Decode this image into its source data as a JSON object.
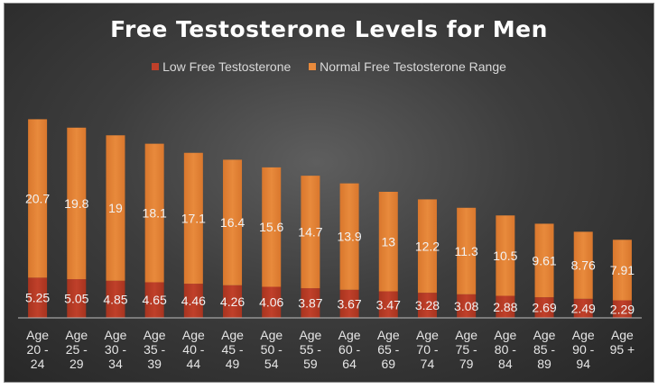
{
  "colors": {
    "low": "#c0402a",
    "normal": "#e88a3c",
    "text": "#ffffff",
    "axis": "#bfbfbf"
  },
  "chart_data": {
    "type": "bar",
    "stacked": true,
    "title": "Free Testosterone Levels for Men",
    "legend_position": "top",
    "grid": false,
    "categories": [
      [
        "Age",
        "20 -",
        "24"
      ],
      [
        "Age",
        "25 -",
        "29"
      ],
      [
        "Age",
        "30 -",
        "34"
      ],
      [
        "Age",
        "35 -",
        "39"
      ],
      [
        "Age",
        "40 -",
        "44"
      ],
      [
        "Age",
        "45 -",
        "49"
      ],
      [
        "Age",
        "50 -",
        "54"
      ],
      [
        "Age",
        "55 -",
        "59"
      ],
      [
        "Age",
        "60 -",
        "64"
      ],
      [
        "Age",
        "65 -",
        "69"
      ],
      [
        "Age",
        "70 -",
        "74"
      ],
      [
        "Age",
        "75 -",
        "79"
      ],
      [
        "Age",
        "80 -",
        "84"
      ],
      [
        "Age",
        "85 -",
        "89"
      ],
      [
        "Age",
        "90 -",
        "94"
      ],
      [
        "Age",
        "95 +"
      ]
    ],
    "series": [
      {
        "name": "Low Free Testosterone",
        "color": "#c0402a",
        "values": [
          5.25,
          5.05,
          4.85,
          4.65,
          4.46,
          4.26,
          4.06,
          3.87,
          3.67,
          3.47,
          3.28,
          3.08,
          2.88,
          2.69,
          2.49,
          2.29
        ]
      },
      {
        "name": "Normal Free Testosterone Range",
        "color": "#e88a3c",
        "values": [
          20.7,
          19.8,
          19,
          18.1,
          17.1,
          16.4,
          15.6,
          14.7,
          13.9,
          13,
          12.2,
          11.3,
          10.5,
          9.61,
          8.76,
          7.91
        ]
      }
    ],
    "ylim": [
      0,
      26
    ]
  }
}
